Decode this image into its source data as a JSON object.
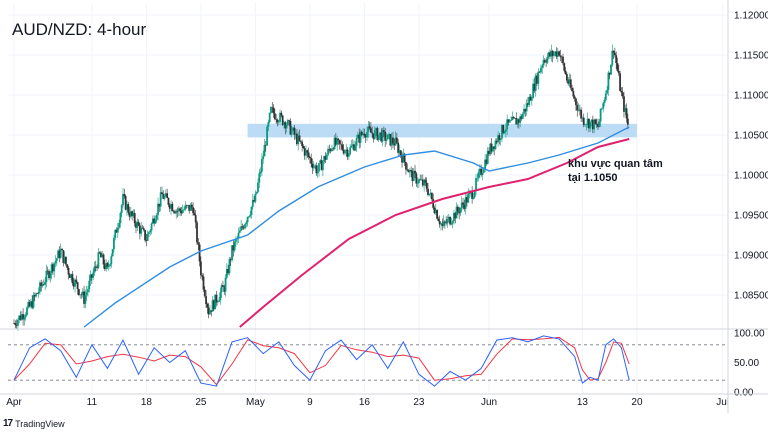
{
  "header": {
    "title": "AUD/NZD: 4-hour"
  },
  "annotation": {
    "line1": "khu vực quan tâm",
    "line2": "tại 1.1050"
  },
  "brand": {
    "name": "TradingView",
    "logo_icon": "tradingview-logo-icon"
  },
  "colors": {
    "up": "#089981",
    "down": "#333333",
    "sma_fast": "#2e8de3",
    "sma_slow": "#e0226e",
    "zone": "#bcdcf6",
    "rsi_k": "#2962ff",
    "rsi_d": "#f23645"
  },
  "chart_data": {
    "type": "candlestick",
    "price_axis": {
      "ticks": [
        "1.12000",
        "1.11500",
        "1.11000",
        "1.10500",
        "1.10000",
        "1.09500",
        "1.09000",
        "1.08500"
      ],
      "range": [
        1.081,
        1.1215
      ]
    },
    "time_axis": {
      "ticks": [
        "Apr",
        "11",
        "18",
        "25",
        "May",
        "9",
        "16",
        "23",
        "Jun",
        "13",
        "20",
        "Jul"
      ]
    },
    "zone": {
      "low": 1.1047,
      "high": 1.1064,
      "label": "khu vực quan tâm tại 1.1050"
    },
    "price_path": [
      {
        "x": "Apr 1",
        "v": 1.0815
      },
      {
        "x": "Apr 3",
        "v": 1.0835
      },
      {
        "x": "Apr 5",
        "v": 1.087
      },
      {
        "x": "Apr 7",
        "v": 1.0905
      },
      {
        "x": "Apr 8",
        "v": 1.088
      },
      {
        "x": "Apr 10",
        "v": 1.0845
      },
      {
        "x": "Apr 12",
        "v": 1.09
      },
      {
        "x": "Apr 13",
        "v": 1.088
      },
      {
        "x": "Apr 15",
        "v": 1.097
      },
      {
        "x": "Apr 16",
        "v": 1.095
      },
      {
        "x": "Apr 18",
        "v": 1.092
      },
      {
        "x": "Apr 20",
        "v": 1.0975
      },
      {
        "x": "Apr 22",
        "v": 1.0955
      },
      {
        "x": "Apr 24",
        "v": 1.096
      },
      {
        "x": "Apr 25",
        "v": 1.088
      },
      {
        "x": "Apr 26",
        "v": 1.083
      },
      {
        "x": "Apr 28",
        "v": 1.086
      },
      {
        "x": "Apr 29",
        "v": 1.0905
      },
      {
        "x": "May 1",
        "v": 1.095
      },
      {
        "x": "May 2",
        "v": 1.097
      },
      {
        "x": "May 3",
        "v": 1.1025
      },
      {
        "x": "May 4",
        "v": 1.108
      },
      {
        "x": "May 6",
        "v": 1.1065
      },
      {
        "x": "May 8",
        "v": 1.1035
      },
      {
        "x": "May 10",
        "v": 1.1005
      },
      {
        "x": "May 12",
        "v": 1.104
      },
      {
        "x": "May 14",
        "v": 1.103
      },
      {
        "x": "May 16",
        "v": 1.1055
      },
      {
        "x": "May 18",
        "v": 1.105
      },
      {
        "x": "May 20",
        "v": 1.104
      },
      {
        "x": "May 22",
        "v": 1.1
      },
      {
        "x": "May 24",
        "v": 1.0985
      },
      {
        "x": "May 26",
        "v": 1.0935
      },
      {
        "x": "May 28",
        "v": 1.0955
      },
      {
        "x": "May 30",
        "v": 1.098
      },
      {
        "x": "Jun 1",
        "v": 1.103
      },
      {
        "x": "Jun 3",
        "v": 1.106
      },
      {
        "x": "Jun 5",
        "v": 1.107
      },
      {
        "x": "Jun 6",
        "v": 1.109
      },
      {
        "x": "Jun 8",
        "v": 1.1145
      },
      {
        "x": "Jun 10",
        "v": 1.1155
      },
      {
        "x": "Jun 11",
        "v": 1.112
      },
      {
        "x": "Jun 13",
        "v": 1.107
      },
      {
        "x": "Jun 15",
        "v": 1.106
      },
      {
        "x": "Jun 16",
        "v": 1.1105
      },
      {
        "x": "Jun 17",
        "v": 1.116
      },
      {
        "x": "Jun 18",
        "v": 1.11
      },
      {
        "x": "Jun 19",
        "v": 1.1055
      }
    ],
    "sma_fast": [
      {
        "x": "Apr 10",
        "v": 1.081
      },
      {
        "x": "Apr 14",
        "v": 1.084
      },
      {
        "x": "Apr 21",
        "v": 1.0885
      },
      {
        "x": "Apr 25",
        "v": 1.0905
      },
      {
        "x": "May 1",
        "v": 1.0925
      },
      {
        "x": "May 5",
        "v": 1.0955
      },
      {
        "x": "May 10",
        "v": 1.0985
      },
      {
        "x": "May 16",
        "v": 1.101
      },
      {
        "x": "May 21",
        "v": 1.1025
      },
      {
        "x": "May 25",
        "v": 1.103
      },
      {
        "x": "May 30",
        "v": 1.1015
      },
      {
        "x": "Jun 1",
        "v": 1.1005
      },
      {
        "x": "Jun 6",
        "v": 1.1015
      },
      {
        "x": "Jun 10",
        "v": 1.1025
      },
      {
        "x": "Jun 15",
        "v": 1.104
      },
      {
        "x": "Jun 19",
        "v": 1.106
      }
    ],
    "sma_slow": [
      {
        "x": "Apr 30",
        "v": 1.081
      },
      {
        "x": "May 3",
        "v": 1.0835
      },
      {
        "x": "May 8",
        "v": 1.0875
      },
      {
        "x": "May 14",
        "v": 1.092
      },
      {
        "x": "May 20",
        "v": 1.095
      },
      {
        "x": "May 26",
        "v": 1.097
      },
      {
        "x": "Jun 1",
        "v": 1.0985
      },
      {
        "x": "Jun 6",
        "v": 1.0995
      },
      {
        "x": "Jun 11",
        "v": 1.1015
      },
      {
        "x": "Jun 15",
        "v": 1.1035
      },
      {
        "x": "Jun 19",
        "v": 1.1045
      }
    ],
    "rsi": {
      "axis_ticks": [
        "100.00",
        "50.00",
        "0.00"
      ],
      "levels": [
        80,
        20
      ],
      "series": [
        {
          "x": "Apr 1",
          "v": 20
        },
        {
          "x": "Apr 3",
          "v": 75
        },
        {
          "x": "Apr 5",
          "v": 90
        },
        {
          "x": "Apr 7",
          "v": 70
        },
        {
          "x": "Apr 9",
          "v": 25
        },
        {
          "x": "Apr 11",
          "v": 80
        },
        {
          "x": "Apr 13",
          "v": 40
        },
        {
          "x": "Apr 15",
          "v": 88
        },
        {
          "x": "Apr 17",
          "v": 30
        },
        {
          "x": "Apr 19",
          "v": 75
        },
        {
          "x": "Apr 21",
          "v": 50
        },
        {
          "x": "Apr 23",
          "v": 70
        },
        {
          "x": "Apr 25",
          "v": 15
        },
        {
          "x": "Apr 27",
          "v": 10
        },
        {
          "x": "Apr 29",
          "v": 85
        },
        {
          "x": "May 1",
          "v": 92
        },
        {
          "x": "May 3",
          "v": 65
        },
        {
          "x": "May 5",
          "v": 85
        },
        {
          "x": "May 7",
          "v": 45
        },
        {
          "x": "May 9",
          "v": 20
        },
        {
          "x": "May 11",
          "v": 70
        },
        {
          "x": "May 13",
          "v": 88
        },
        {
          "x": "May 15",
          "v": 55
        },
        {
          "x": "May 17",
          "v": 80
        },
        {
          "x": "May 19",
          "v": 40
        },
        {
          "x": "May 21",
          "v": 85
        },
        {
          "x": "May 23",
          "v": 30
        },
        {
          "x": "May 25",
          "v": 10
        },
        {
          "x": "May 27",
          "v": 35
        },
        {
          "x": "May 29",
          "v": 20
        },
        {
          "x": "May 31",
          "v": 40
        },
        {
          "x": "Jun 2",
          "v": 88
        },
        {
          "x": "Jun 4",
          "v": 92
        },
        {
          "x": "Jun 6",
          "v": 85
        },
        {
          "x": "Jun 8",
          "v": 95
        },
        {
          "x": "Jun 10",
          "v": 90
        },
        {
          "x": "Jun 12",
          "v": 60
        },
        {
          "x": "Jun 13",
          "v": 15
        },
        {
          "x": "Jun 14",
          "v": 25
        },
        {
          "x": "Jun 15",
          "v": 20
        },
        {
          "x": "Jun 16",
          "v": 80
        },
        {
          "x": "Jun 17",
          "v": 90
        },
        {
          "x": "Jun 18",
          "v": 75
        },
        {
          "x": "Jun 19",
          "v": 20
        }
      ]
    }
  }
}
